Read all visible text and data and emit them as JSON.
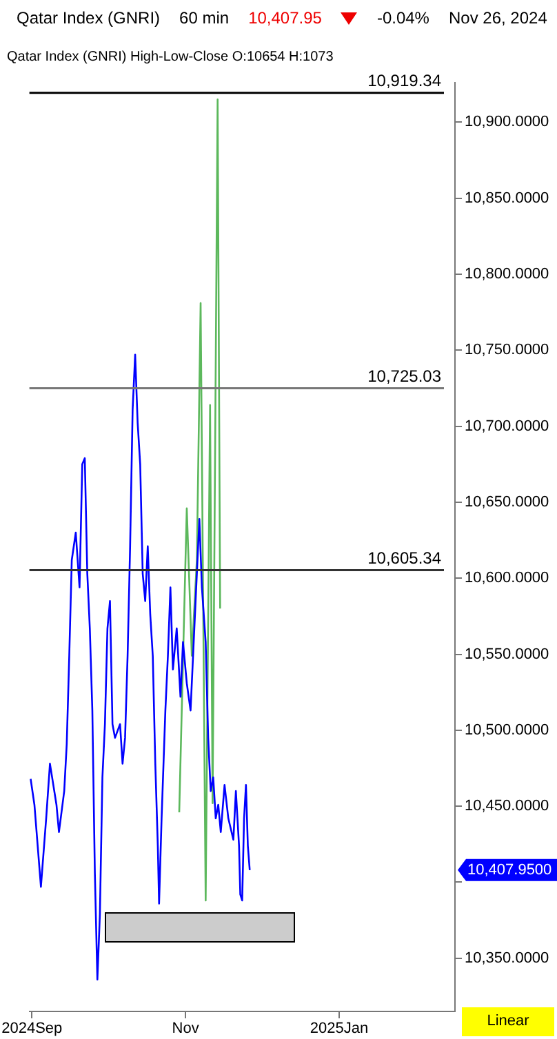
{
  "chart_data": {
    "type": "line",
    "title": "Qatar Index  (GNRI)",
    "subtitle": "Qatar Index (GNRI)  High-Low-Close    O:10654  H:1073",
    "annotations": [
      "60 min",
      "10,407.95",
      "-0.04%",
      "Nov 26, 2024",
      "10,407.9500",
      "Linear"
    ],
    "xlim": [
      "2024-08-31",
      "2025-02-16"
    ],
    "xticks": [
      {
        "value": "2024-09-01",
        "label": "2024Sep"
      },
      {
        "value": "2024-11-01",
        "label": "Nov"
      },
      {
        "value": "2025-01-01",
        "label": "2025Jan"
      }
    ],
    "ylim": [
      10315,
      10926
    ],
    "yticks": [
      {
        "value": 10350,
        "label": "10,350.0000"
      },
      {
        "value": 10400,
        "label": null
      },
      {
        "value": 10450,
        "label": "10,450.0000"
      },
      {
        "value": 10500,
        "label": "10,500.0000"
      },
      {
        "value": 10550,
        "label": "10,550.0000"
      },
      {
        "value": 10600,
        "label": "10,600.0000"
      },
      {
        "value": 10650,
        "label": "10,650.0000"
      },
      {
        "value": 10700,
        "label": "10,700.0000"
      },
      {
        "value": 10750,
        "label": "10,750.0000"
      },
      {
        "value": 10800,
        "label": "10,800.0000"
      },
      {
        "value": 10850,
        "label": "10,850.0000"
      },
      {
        "value": 10900,
        "label": "10,900.0000"
      }
    ],
    "ref_lines": [
      {
        "axis": "y",
        "value": 10919.34,
        "label": "10,919.34",
        "color": "#000000"
      },
      {
        "axis": "y",
        "value": 10725.03,
        "label": "10,725.03",
        "color": "#777777"
      },
      {
        "axis": "y",
        "value": 10605.34,
        "label": "10,605.34",
        "color": "#333333"
      }
    ],
    "grid": false,
    "legend": false,
    "marker": "none",
    "series": [
      {
        "color": "#0000ff",
        "x": [
          "2024-08-31T12:00",
          "2024-09-02",
          "2024-09-04T14:00",
          "2024-09-06T16:00",
          "2024-09-08T04:00",
          "2024-09-10T18:00",
          "2024-09-11T18:00",
          "2024-09-13T20:00",
          "2024-09-14T20:00",
          "2024-09-15T20:00",
          "2024-09-16T20:00",
          "2024-09-18T10:00",
          "2024-09-19T22:00",
          "2024-09-21",
          "2024-09-22",
          "2024-09-23",
          "2024-09-24",
          "2024-09-25",
          "2024-09-26",
          "2024-09-27",
          "2024-09-28",
          "2024-09-29",
          "2024-09-30",
          "2024-10-01",
          "2024-10-02",
          "2024-10-03",
          "2024-10-04",
          "2024-10-06",
          "2024-10-07",
          "2024-10-08",
          "2024-10-09",
          "2024-10-10",
          "2024-10-11",
          "2024-10-12",
          "2024-10-13",
          "2024-10-14",
          "2024-10-15",
          "2024-10-16",
          "2024-10-17",
          "2024-10-18",
          "2024-10-19",
          "2024-10-20",
          "2024-10-21",
          "2024-10-21T12:00",
          "2024-10-22T12:00",
          "2024-10-24",
          "2024-10-25",
          "2024-10-26",
          "2024-10-27",
          "2024-10-28T12:00",
          "2024-10-30",
          "2024-10-31",
          "2024-11-01T12:00",
          "2024-11-03",
          "2024-11-04",
          "2024-11-05T12:00",
          "2024-11-06T12:00",
          "2024-11-07T12:00",
          "2024-11-09",
          "2024-11-10",
          "2024-11-11",
          "2024-11-12",
          "2024-11-13",
          "2024-11-14",
          "2024-11-15",
          "2024-11-16T12:00",
          "2024-11-18",
          "2024-11-20",
          "2024-11-21",
          "2024-11-22T06:00",
          "2024-11-22T18:00",
          "2024-11-23T12:00",
          "2024-11-24T06:00",
          "2024-11-25",
          "2024-11-25T18:00",
          "2024-11-26T12:00"
        ],
        "values": [
          10468,
          10451,
          10397,
          10442,
          10478,
          10451,
          10433,
          10460,
          10491,
          10549,
          10612,
          10630,
          10594,
          10675,
          10679,
          10603,
          10567,
          10513,
          10406,
          10336,
          10379,
          10469,
          10504,
          10567,
          10585,
          10504,
          10495,
          10504,
          10478,
          10495,
          10549,
          10621,
          10711,
          10747,
          10702,
          10675,
          10603,
          10585,
          10621,
          10576,
          10549,
          10478,
          10424,
          10386,
          10442,
          10513,
          10549,
          10594,
          10540,
          10567,
          10522,
          10558,
          10531,
          10513,
          10549,
          10603,
          10639,
          10594,
          10558,
          10495,
          10460,
          10469,
          10442,
          10451,
          10433,
          10464,
          10442,
          10428,
          10460,
          10424,
          10392,
          10388,
          10442,
          10464,
          10424,
          10408
        ]
      },
      {
        "color": "#5cb85c",
        "x": [
          "2024-10-29T12:00",
          "2024-11-01T12:00",
          "2024-11-03T12:00",
          "2024-11-05T12:00",
          "2024-11-07",
          "2024-11-09",
          "2024-11-10T18:00",
          "2024-11-11T18:00",
          "2024-11-13T18:00",
          "2024-11-14T18:00"
        ],
        "values": [
          10446,
          10646,
          10549,
          10612,
          10781,
          10388,
          10714,
          10452,
          10915,
          10580
        ]
      }
    ]
  }
}
